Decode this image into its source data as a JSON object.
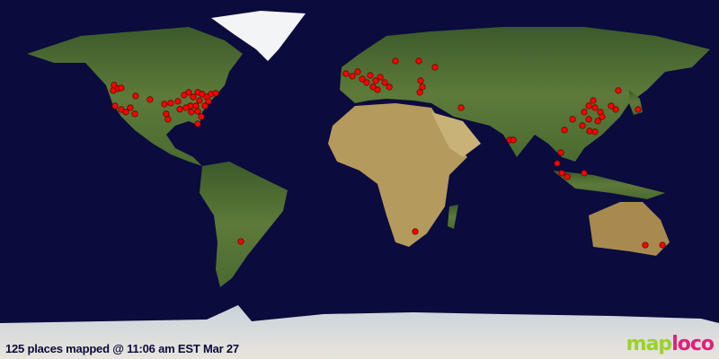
{
  "status_text": "125 places mapped @ 11:06 am EST Mar 27",
  "logo": {
    "part1": "map",
    "part2": "loco"
  },
  "colors": {
    "ocean": "#0b0b3d",
    "marker": "#ff0000",
    "logo_green": "#9bd12a",
    "logo_pink": "#e0207a"
  },
  "projection": "equirectangular",
  "markers": [
    [
      -122.9,
      47.3
    ],
    [
      -121.0,
      45.5
    ],
    [
      -123.3,
      44.6
    ],
    [
      -119.3,
      45.9
    ],
    [
      -112.1,
      41.9
    ],
    [
      -104.9,
      40.1
    ],
    [
      -122.4,
      36.9
    ],
    [
      -119.3,
      35.1
    ],
    [
      -114.8,
      36.0
    ],
    [
      -117.0,
      33.8
    ],
    [
      -112.5,
      32.9
    ],
    [
      -97.7,
      37.8
    ],
    [
      -94.5,
      38.3
    ],
    [
      -96.8,
      32.9
    ],
    [
      -95.9,
      30.2
    ],
    [
      -87.8,
      42.3
    ],
    [
      -85.5,
      43.7
    ],
    [
      -83.3,
      41.4
    ],
    [
      -81.0,
      43.7
    ],
    [
      -78.8,
      42.8
    ],
    [
      -76.5,
      41.4
    ],
    [
      -74.3,
      42.8
    ],
    [
      -72.0,
      43.2
    ],
    [
      -80.1,
      39.6
    ],
    [
      -81.9,
      36.9
    ],
    [
      -77.4,
      36.9
    ],
    [
      -75.6,
      39.2
    ],
    [
      -84.6,
      36.9
    ],
    [
      -86.9,
      36.0
    ],
    [
      -84.2,
      33.8
    ],
    [
      -90.0,
      35.2
    ],
    [
      -90.9,
      39.2
    ],
    [
      -81.0,
      34.2
    ],
    [
      -79.2,
      31.5
    ],
    [
      -81.0,
      27.9
    ],
    [
      -59.4,
      -31.1
    ],
    [
      -6.8,
      53.1
    ],
    [
      -3.6,
      51.8
    ],
    [
      -0.9,
      54.0
    ],
    [
      1.4,
      50.4
    ],
    [
      3.6,
      48.6
    ],
    [
      5.4,
      52.2
    ],
    [
      8.1,
      49.5
    ],
    [
      10.4,
      51.3
    ],
    [
      12.6,
      48.6
    ],
    [
      6.8,
      46.4
    ],
    [
      9.0,
      45.0
    ],
    [
      14.9,
      46.4
    ],
    [
      18.0,
      59.4
    ],
    [
      29.7,
      59.4
    ],
    [
      37.8,
      56.3
    ],
    [
      30.6,
      49.5
    ],
    [
      31.5,
      46.4
    ],
    [
      30.2,
      43.7
    ],
    [
      50.9,
      36.0
    ],
    [
      75.2,
      19.8
    ],
    [
      77.0,
      19.8
    ],
    [
      100.8,
      13.5
    ],
    [
      99.0,
      8.1
    ],
    [
      101.3,
      3.2
    ],
    [
      104.0,
      1.4
    ],
    [
      112.5,
      3.2
    ],
    [
      106.7,
      30.2
    ],
    [
      114.8,
      36.9
    ],
    [
      117.0,
      39.6
    ],
    [
      117.9,
      36.0
    ],
    [
      120.6,
      33.8
    ],
    [
      112.5,
      33.8
    ],
    [
      114.8,
      30.2
    ],
    [
      111.6,
      27.0
    ],
    [
      119.3,
      29.3
    ],
    [
      121.5,
      31.5
    ],
    [
      115.2,
      24.3
    ],
    [
      117.9,
      23.9
    ],
    [
      102.6,
      24.8
    ],
    [
      126.0,
      36.9
    ],
    [
      128.3,
      35.1
    ],
    [
      129.6,
      44.6
    ],
    [
      139.5,
      35.1
    ],
    [
      27.9,
      -26.1
    ],
    [
      143.1,
      -32.9
    ],
    [
      151.7,
      -32.9
    ]
  ]
}
